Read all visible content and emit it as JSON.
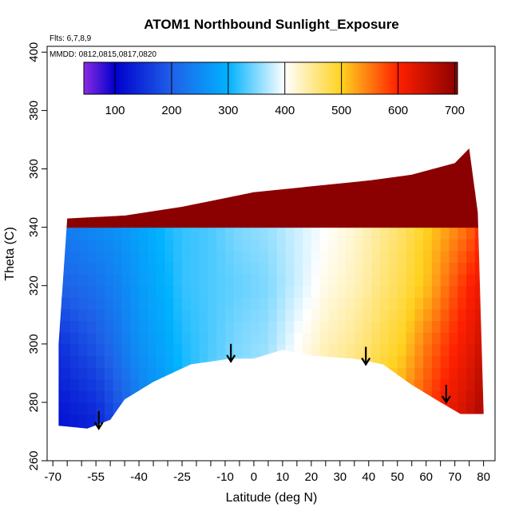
{
  "chart_data": {
    "type": "heatmap",
    "title": "ATOM1 Northbound Sunlight_Exposure",
    "flights_label": "Flts: 6,7,8,9",
    "dates_label": "MMDD: 0812,0815,0817,0820",
    "xlabel": "Latitude (deg N)",
    "ylabel": "Theta (C)",
    "xlim": [
      -72,
      84
    ],
    "ylim": [
      260,
      402
    ],
    "x_ticks": [
      -70,
      -55,
      -40,
      -25,
      -10,
      0,
      10,
      20,
      30,
      40,
      50,
      60,
      70,
      80
    ],
    "x_minor_ticks": [
      -65,
      -60,
      -50,
      -45,
      -35,
      -30,
      -20,
      -15,
      -5,
      5,
      15,
      25,
      35,
      45,
      55,
      65,
      75
    ],
    "y_ticks": [
      260,
      280,
      300,
      320,
      340,
      360,
      380,
      400
    ],
    "colorbar": {
      "range": [
        45,
        705
      ],
      "ticks": [
        100,
        200,
        300,
        400,
        500,
        600,
        700
      ],
      "stops": [
        {
          "v": 45,
          "c": "#8a2be2"
        },
        {
          "v": 100,
          "c": "#0000cd"
        },
        {
          "v": 200,
          "c": "#1f60e8"
        },
        {
          "v": 300,
          "c": "#00b2ff"
        },
        {
          "v": 400,
          "c": "#ffffff"
        },
        {
          "v": 500,
          "c": "#ffd21f"
        },
        {
          "v": 600,
          "c": "#ff2000"
        },
        {
          "v": 705,
          "c": "#8b0000"
        }
      ]
    },
    "grid": false,
    "field": {
      "lat_points": [
        -68,
        -62,
        -55,
        -48,
        -40,
        -30,
        -25,
        -15,
        -5,
        5,
        15,
        25,
        35,
        45,
        52,
        60,
        68,
        75,
        80
      ],
      "theta_points": [
        275,
        300,
        320,
        340,
        362
      ],
      "values": [
        [
          120,
          150,
          200,
          230
        ],
        [
          130,
          170,
          210,
          240
        ],
        [
          140,
          190,
          220,
          250
        ],
        [
          180,
          220,
          240,
          260
        ],
        [
          230,
          260,
          270,
          280
        ],
        [
          270,
          290,
          300,
          310
        ],
        [
          300,
          310,
          320,
          320
        ],
        [
          340,
          330,
          330,
          330
        ],
        [
          360,
          350,
          340,
          350
        ],
        [
          380,
          360,
          350,
          360
        ],
        [
          420,
          400,
          380,
          380
        ],
        [
          460,
          430,
          410,
          400
        ],
        [
          480,
          450,
          430,
          420
        ],
        [
          510,
          480,
          460,
          450
        ],
        [
          540,
          500,
          480,
          470
        ],
        [
          580,
          550,
          510,
          500
        ],
        [
          620,
          590,
          560,
          530
        ],
        [
          650,
          620,
          600,
          560
        ],
        [
          680,
          650,
          620,
          600
        ]
      ]
    },
    "upper_boundary": [
      {
        "lat": -68,
        "theta": 300
      },
      {
        "lat": -65,
        "theta": 343
      },
      {
        "lat": -45,
        "theta": 344
      },
      {
        "lat": -25,
        "theta": 347
      },
      {
        "lat": -15,
        "theta": 349
      },
      {
        "lat": 0,
        "theta": 352
      },
      {
        "lat": 20,
        "theta": 354
      },
      {
        "lat": 40,
        "theta": 356
      },
      {
        "lat": 55,
        "theta": 358
      },
      {
        "lat": 70,
        "theta": 362
      },
      {
        "lat": 75,
        "theta": 367
      },
      {
        "lat": 78,
        "theta": 345
      },
      {
        "lat": 80,
        "theta": 277
      }
    ],
    "lower_boundary": [
      {
        "lat": -68,
        "theta": 272
      },
      {
        "lat": -58,
        "theta": 271
      },
      {
        "lat": -50,
        "theta": 274
      },
      {
        "lat": -45,
        "theta": 281
      },
      {
        "lat": -35,
        "theta": 287
      },
      {
        "lat": -22,
        "theta": 293
      },
      {
        "lat": -8,
        "theta": 295
      },
      {
        "lat": 0,
        "theta": 295
      },
      {
        "lat": 10,
        "theta": 298
      },
      {
        "lat": 20,
        "theta": 296
      },
      {
        "lat": 35,
        "theta": 295
      },
      {
        "lat": 45,
        "theta": 293
      },
      {
        "lat": 55,
        "theta": 286
      },
      {
        "lat": 65,
        "theta": 280
      },
      {
        "lat": 72,
        "theta": 276
      },
      {
        "lat": 80,
        "theta": 276
      }
    ],
    "arrows": [
      {
        "lat": -54,
        "theta": 271
      },
      {
        "lat": -8,
        "theta": 294
      },
      {
        "lat": 39,
        "theta": 293
      },
      {
        "lat": 67,
        "theta": 280
      }
    ]
  }
}
